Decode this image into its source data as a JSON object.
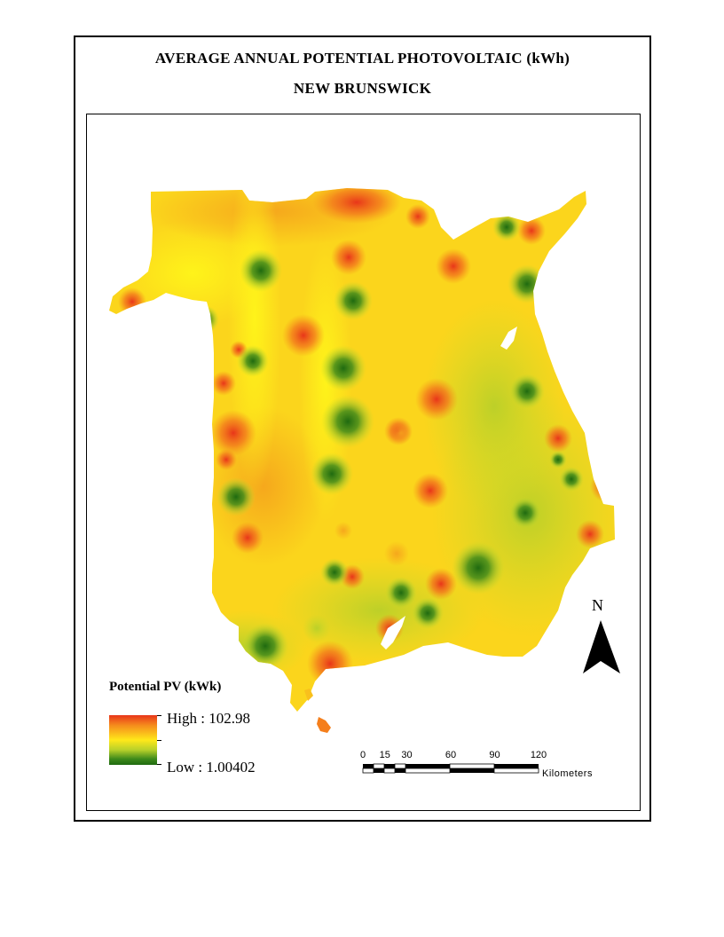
{
  "map": {
    "title_line1": "AVERAGE ANNUAL POTENTIAL PHOTOVOLTAIC (kWh)",
    "title_line2": "NEW BRUNSWICK",
    "region": "New Brunswick",
    "color_ramp": {
      "high": "#e8361a",
      "mid_high": "#f58a1c",
      "mid": "#ffe81a",
      "mid_low": "#b7d02a",
      "low": "#1f6a10"
    }
  },
  "legend": {
    "title": "Potential PV (kWk)",
    "high_label": "High : 102.98",
    "low_label": "Low : 1.00402",
    "high_value": 102.98,
    "low_value": 1.00402
  },
  "scale_bar": {
    "ticks": [
      "0",
      "15",
      "30",
      "60",
      "90",
      "120"
    ],
    "unit": "Kilometers"
  },
  "north_arrow": {
    "label": "N"
  }
}
